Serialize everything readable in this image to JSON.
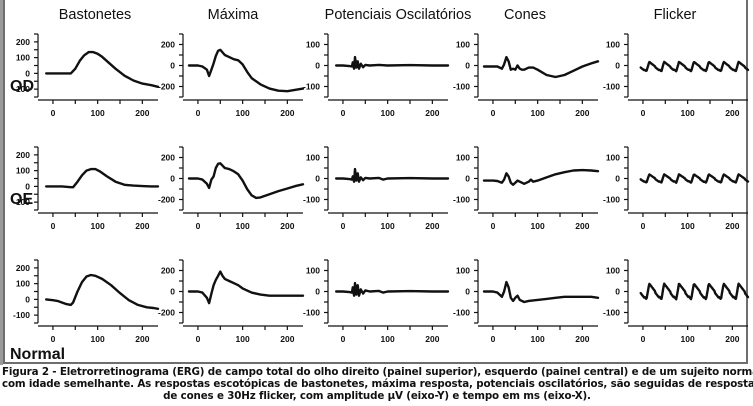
{
  "columns": [
    "Bastonetes",
    "Máxima",
    "Potenciais Oscilatórios",
    "Cones",
    "Flicker"
  ],
  "rows": [
    "OD",
    "OE",
    "Normal"
  ],
  "caption": {
    "line1": "Figura 2 - Eletrorretinograma (ERG) de campo total do olho direito (painel superior), esquerdo (painel central) e de um sujeito normal (painel inferior)",
    "line2": "com idade semelhante. As respostas escotópicas de bastonetes, máxima resposta, potenciais oscilatórios, são seguidas de respostas fotópicas",
    "line3": "de cones e 30Hz flicker, com amplitude µV (eixo-Y) e tempo em ms (eixo-X)."
  },
  "chart_data": {
    "type": "line",
    "title": "Eletrorretinograma (ERG) de campo total",
    "xlabel": "tempo (ms)",
    "ylabel": "amplitude (µV)",
    "x_ticks": [
      0,
      100,
      200
    ],
    "xlim": [
      -20,
      235
    ],
    "panel_axes": {
      "Bastonetes": {
        "ylim": [
          -150,
          250
        ],
        "y_ticks": [
          200,
          100,
          0,
          -100
        ]
      },
      "Máxima": {
        "ylim": [
          -300,
          300
        ],
        "y_ticks": [
          200,
          0,
          -200
        ]
      },
      "Potenciais Oscilatórios": {
        "ylim": [
          -150,
          150
        ],
        "y_ticks": [
          100,
          0,
          -100
        ]
      },
      "Cones": {
        "ylim": [
          -150,
          150
        ],
        "y_ticks": [
          100,
          0,
          -100
        ]
      },
      "Flicker": {
        "ylim": [
          -150,
          150
        ],
        "y_ticks": [
          100,
          0,
          -100
        ]
      }
    },
    "panels": [
      {
        "row": "OD",
        "column": "Bastonetes",
        "x": [
          -15,
          0,
          20,
          40,
          50,
          60,
          70,
          80,
          90,
          100,
          110,
          120,
          140,
          160,
          180,
          200,
          220,
          235
        ],
        "y": [
          0,
          0,
          0,
          0,
          30,
          80,
          115,
          135,
          135,
          125,
          105,
          80,
          30,
          -15,
          -45,
          -65,
          -75,
          -85
        ]
      },
      {
        "row": "OD",
        "column": "Máxima",
        "x": [
          -20,
          0,
          10,
          20,
          25,
          30,
          35,
          40,
          45,
          50,
          60,
          70,
          80,
          90,
          100,
          110,
          120,
          140,
          160,
          180,
          200,
          220,
          235
        ],
        "y": [
          0,
          0,
          -10,
          -40,
          -100,
          -40,
          20,
          90,
          140,
          150,
          100,
          80,
          60,
          50,
          10,
          -60,
          -120,
          -180,
          -220,
          -240,
          -245,
          -230,
          -220
        ]
      },
      {
        "row": "OD",
        "column": "Potenciais Oscilatórios",
        "x": [
          -15,
          0,
          15,
          20,
          22,
          25,
          27,
          30,
          33,
          36,
          40,
          45,
          50,
          60,
          80,
          100,
          150,
          200,
          235
        ],
        "y": [
          0,
          0,
          -3,
          -5,
          15,
          -15,
          40,
          -10,
          20,
          -15,
          8,
          -8,
          3,
          0,
          3,
          0,
          2,
          0,
          0
        ]
      },
      {
        "row": "OD",
        "column": "Cones",
        "x": [
          -20,
          0,
          10,
          20,
          25,
          30,
          35,
          40,
          45,
          50,
          55,
          60,
          65,
          70,
          80,
          90,
          100,
          120,
          140,
          160,
          180,
          200,
          220,
          235
        ],
        "y": [
          -5,
          -5,
          -5,
          -15,
          5,
          40,
          20,
          -20,
          -15,
          -20,
          0,
          -15,
          -20,
          -20,
          -10,
          -10,
          -20,
          -45,
          -55,
          -45,
          -25,
          -5,
          10,
          20
        ]
      },
      {
        "row": "OD",
        "column": "Flicker",
        "x": "0..235 step 2.5 (periodic ~33.3 ms, 30Hz)",
        "y_amplitude_pp": 45,
        "y_center": -5
      },
      {
        "row": "OE",
        "column": "Bastonetes",
        "x": [
          -15,
          0,
          20,
          40,
          45,
          55,
          65,
          75,
          85,
          95,
          105,
          120,
          140,
          160,
          180,
          200,
          220,
          235
        ],
        "y": [
          0,
          0,
          0,
          -5,
          -5,
          30,
          70,
          100,
          110,
          110,
          95,
          65,
          30,
          10,
          5,
          2,
          0,
          0
        ]
      },
      {
        "row": "OE",
        "column": "Máxima",
        "x": [
          -20,
          0,
          10,
          20,
          25,
          30,
          35,
          40,
          45,
          50,
          60,
          70,
          80,
          90,
          100,
          110,
          120,
          130,
          140,
          160,
          180,
          200,
          220,
          235
        ],
        "y": [
          0,
          0,
          -10,
          -50,
          -90,
          -10,
          20,
          100,
          140,
          145,
          100,
          90,
          70,
          40,
          -20,
          -100,
          -160,
          -185,
          -180,
          -150,
          -120,
          -95,
          -70,
          -55
        ]
      },
      {
        "row": "OE",
        "column": "Potenciais Oscilatórios",
        "x": [
          -15,
          0,
          15,
          20,
          22,
          25,
          27,
          30,
          33,
          36,
          40,
          45,
          50,
          60,
          80,
          90,
          100,
          150,
          200,
          235
        ],
        "y": [
          0,
          0,
          -3,
          -5,
          10,
          -15,
          45,
          -10,
          25,
          -15,
          5,
          -8,
          3,
          0,
          3,
          -5,
          0,
          2,
          0,
          0
        ]
      },
      {
        "row": "OE",
        "column": "Cones",
        "x": [
          -20,
          0,
          10,
          20,
          25,
          30,
          35,
          40,
          45,
          50,
          55,
          60,
          70,
          80,
          85,
          90,
          100,
          120,
          140,
          160,
          180,
          200,
          220,
          235
        ],
        "y": [
          -10,
          -10,
          -12,
          -20,
          -5,
          25,
          10,
          -20,
          -30,
          -20,
          -10,
          -15,
          -25,
          -15,
          -5,
          -15,
          -10,
          5,
          20,
          30,
          38,
          40,
          38,
          35
        ]
      },
      {
        "row": "OE",
        "column": "Flicker",
        "x": "0..235 step 2.5 (periodic ~33.3 ms, 30Hz)",
        "y_amplitude_pp": 40,
        "y_center": 0
      },
      {
        "row": "Normal",
        "column": "Bastonetes",
        "x": [
          -15,
          0,
          10,
          20,
          30,
          40,
          45,
          55,
          65,
          75,
          85,
          95,
          110,
          130,
          150,
          170,
          190,
          210,
          225,
          235
        ],
        "y": [
          0,
          -5,
          -10,
          -20,
          -30,
          -35,
          -20,
          50,
          110,
          145,
          155,
          150,
          130,
          90,
          40,
          -5,
          -35,
          -50,
          -55,
          -60
        ]
      },
      {
        "row": "Normal",
        "column": "Máxima",
        "x": [
          -20,
          0,
          10,
          20,
          25,
          30,
          35,
          40,
          45,
          50,
          55,
          60,
          70,
          80,
          90,
          100,
          120,
          140,
          160,
          180,
          200,
          220,
          235
        ],
        "y": [
          0,
          0,
          -10,
          -60,
          -110,
          -20,
          60,
          110,
          150,
          190,
          150,
          120,
          100,
          80,
          60,
          30,
          -10,
          -30,
          -40,
          -40,
          -40,
          -40,
          -40
        ]
      },
      {
        "row": "Normal",
        "column": "Potenciais Oscilatórios",
        "x": [
          -15,
          0,
          15,
          20,
          22,
          25,
          27,
          30,
          33,
          36,
          40,
          45,
          50,
          60,
          80,
          90,
          100,
          150,
          200,
          235
        ],
        "y": [
          0,
          0,
          -3,
          -5,
          20,
          -20,
          40,
          -15,
          30,
          -20,
          10,
          -10,
          5,
          0,
          3,
          -5,
          0,
          2,
          0,
          0
        ]
      },
      {
        "row": "Normal",
        "column": "Cones",
        "x": [
          -20,
          0,
          10,
          20,
          25,
          30,
          35,
          40,
          45,
          50,
          55,
          60,
          70,
          80,
          100,
          120,
          140,
          160,
          180,
          200,
          220,
          235
        ],
        "y": [
          0,
          0,
          -5,
          -25,
          0,
          45,
          20,
          -30,
          -45,
          -30,
          -20,
          -40,
          -50,
          -45,
          -40,
          -35,
          -30,
          -25,
          -25,
          -25,
          -25,
          -30
        ]
      },
      {
        "row": "Normal",
        "column": "Flicker",
        "x": "0..235 step 2.5 (periodic ~33.3 ms, 30Hz)",
        "y_amplitude_pp": 75,
        "y_center": 0
      }
    ],
    "legend": "none",
    "grid": false
  }
}
